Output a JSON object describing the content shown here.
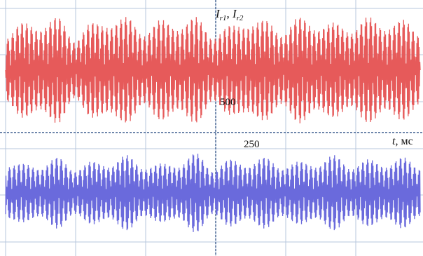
{
  "chart_data": {
    "type": "line",
    "ylabel_main": "I",
    "ylabel_sub1": "r1",
    "ylabel_sep": ", ",
    "ylabel_sub2": "r2",
    "xlabel_var": "t",
    "xlabel_unit": ", мс",
    "tick_label_250": "250",
    "tick_label_500": "500",
    "x_unit_labels": [
      "250",
      "500"
    ],
    "grid": true,
    "series": [
      {
        "color": "#e65a5a",
        "envelope": [
          0.55,
          0.85,
          0.7,
          0.95,
          0.5,
          0.85,
          0.75,
          0.95,
          0.6,
          0.9,
          0.7,
          0.95,
          0.55,
          0.8,
          0.75,
          0.9,
          0.6,
          0.95,
          0.7,
          0.85,
          0.65,
          0.95,
          0.7,
          0.9,
          0.6
        ]
      },
      {
        "color": "#6a6adc",
        "envelope": [
          0.6,
          0.7,
          0.55,
          0.85,
          0.5,
          0.75,
          0.6,
          0.9,
          0.55,
          0.7,
          0.6,
          0.95,
          0.5,
          0.8,
          0.6,
          0.85,
          0.55,
          0.75,
          0.6,
          0.9,
          0.55,
          0.8,
          0.6,
          0.85,
          0.55
        ]
      }
    ]
  }
}
